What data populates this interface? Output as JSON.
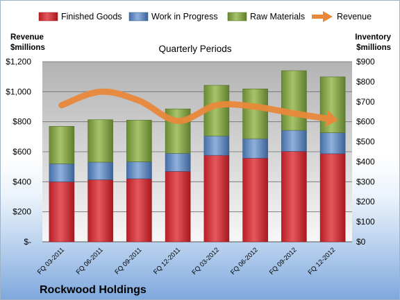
{
  "company": "Rockwood Holdings",
  "chart_data": {
    "type": "bar",
    "stacked": true,
    "title": "Quarterly Periods",
    "categories": [
      "FQ 03-2011",
      "FQ 06-2011",
      "FQ 09-2011",
      "FQ 12-2011",
      "FQ 03-2012",
      "FQ 06-2012",
      "FQ 09-2012",
      "FQ 12-2012"
    ],
    "series": [
      {
        "name": "Finished Goods",
        "axis": "right",
        "color": "#c0272d",
        "values": [
          300,
          310,
          315,
          352,
          432,
          418,
          452,
          440
        ]
      },
      {
        "name": "Work in Progress",
        "axis": "right",
        "color": "#4f81bd",
        "values": [
          90,
          88,
          85,
          90,
          97,
          97,
          105,
          105
        ]
      },
      {
        "name": "Raw Materials",
        "axis": "right",
        "color": "#77933c",
        "values": [
          187,
          212,
          208,
          222,
          253,
          249,
          298,
          279
        ]
      },
      {
        "name": "Revenue",
        "axis": "left",
        "type": "line",
        "color": "#e8883a",
        "values": [
          910,
          1000,
          940,
          805,
          910,
          900,
          855,
          815
        ]
      }
    ],
    "left_axis": {
      "label": [
        "Revenue",
        "$millions"
      ],
      "ylim": [
        0,
        1200
      ],
      "ticks": [
        0,
        200,
        400,
        600,
        800,
        1000,
        1200
      ],
      "tick_labels": [
        "$-",
        "$200",
        "$400",
        "$600",
        "$800",
        "$1,000",
        "$1,200"
      ]
    },
    "right_axis": {
      "label": [
        "Inventory",
        "$millions"
      ],
      "ylim": [
        0,
        900
      ],
      "ticks": [
        0,
        100,
        200,
        300,
        400,
        500,
        600,
        700,
        800,
        900
      ],
      "tick_labels": [
        "$0",
        "$100",
        "$200",
        "$300",
        "$400",
        "$500",
        "$600",
        "$700",
        "$800",
        "$900"
      ]
    },
    "grid": true,
    "legend": "top"
  }
}
